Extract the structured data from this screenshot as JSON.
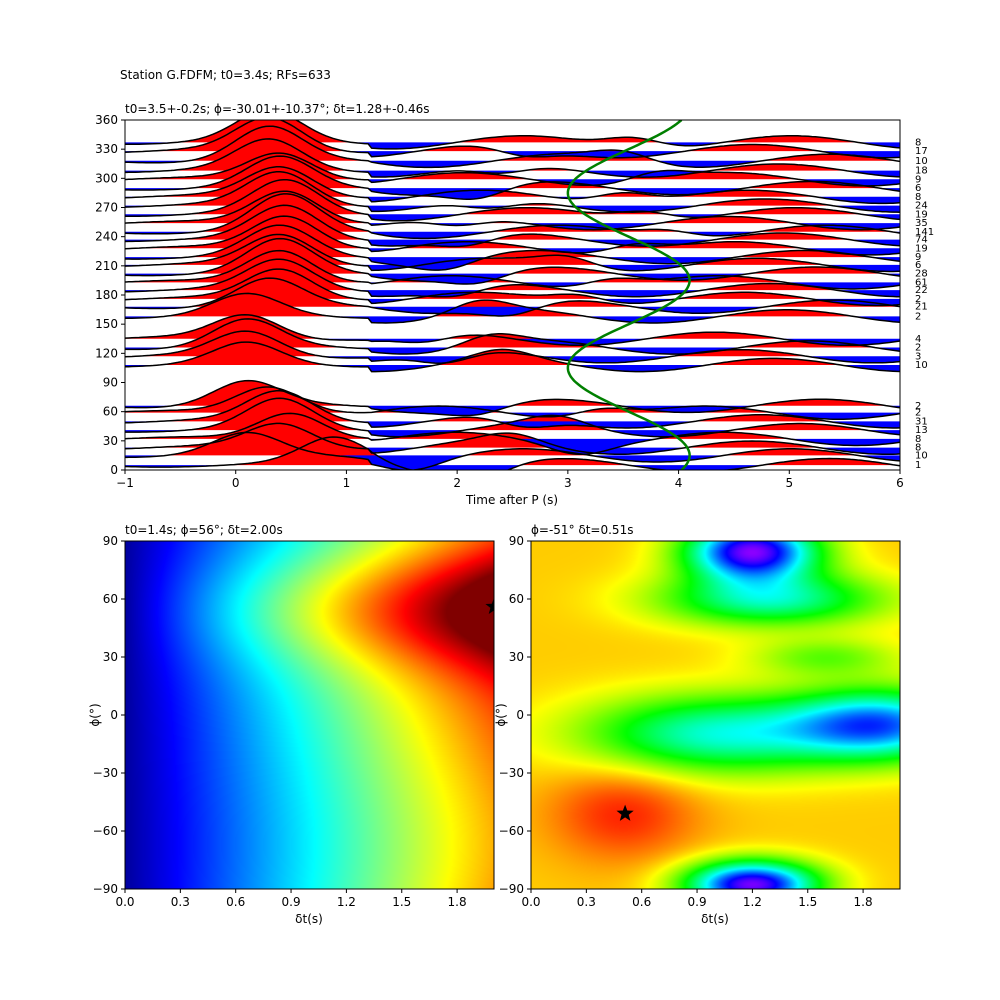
{
  "figure": {
    "suptitle": "Station G.FDFM; t0=3.4s; RFs=633"
  },
  "chart_data": [
    {
      "type": "line",
      "panel": "waveform-stack",
      "title": "t0=3.5+-0.2s; ϕ=-30.01+-10.37°; δt=1.28+-0.46s",
      "xlabel": "Time after P (s)",
      "ylabel": "",
      "xlim": [
        -1,
        6
      ],
      "ylim": [
        0,
        360
      ],
      "xticks": [
        -1,
        0,
        1,
        2,
        3,
        4,
        5,
        6
      ],
      "yticks": [
        0,
        30,
        60,
        90,
        120,
        150,
        180,
        210,
        240,
        270,
        300,
        330,
        360
      ],
      "positive_fill_color": "#ff0000",
      "negative_fill_color": "#0000ff",
      "trace_color": "#000000",
      "fit_curve_color": "#008000",
      "fit_curve": {
        "name": "",
        "center": 3.55,
        "amplitude": 0.55,
        "period_deg": 180,
        "phase_deg": 60
      },
      "traces": [
        {
          "baz": 5,
          "count": "1",
          "peak": 0.9,
          "peak_t": 0.9,
          "secondary": -0.4,
          "secondary_t": 2.2,
          "phase": 0.2
        },
        {
          "baz": 15,
          "count": "10",
          "peak": 0.7,
          "peak_t": 0.1,
          "secondary": -0.3,
          "secondary_t": 1.6,
          "phase": 1.1
        },
        {
          "baz": 23,
          "count": "8",
          "peak": 0.8,
          "peak_t": 0.4,
          "secondary": 0.3,
          "secondary_t": 2.5,
          "phase": 2.0
        },
        {
          "baz": 32,
          "count": "8",
          "peak": 0.9,
          "peak_t": 0.5,
          "secondary": -0.3,
          "secondary_t": 3.1,
          "phase": 2.7
        },
        {
          "baz": 41,
          "count": "13",
          "peak": 1.0,
          "peak_t": 0.4,
          "secondary": 0.3,
          "secondary_t": 2.9,
          "phase": 0.9
        },
        {
          "baz": 50,
          "count": "31",
          "peak": 1.0,
          "peak_t": 0.4,
          "secondary": -0.35,
          "secondary_t": 2.6,
          "phase": 1.8
        },
        {
          "baz": 59,
          "count": "2",
          "peak": 0.9,
          "peak_t": 0.3,
          "secondary": 0.3,
          "secondary_t": 3.3,
          "phase": 3.1
        },
        {
          "baz": 66,
          "count": "2",
          "peak": 0.8,
          "peak_t": 0.1,
          "secondary": -0.25,
          "secondary_t": 2.2,
          "phase": 0.4
        },
        {
          "baz": 108,
          "count": "10",
          "peak": 0.7,
          "peak_t": 0.1,
          "secondary": 0.3,
          "secondary_t": 2.4,
          "phase": 1.5
        },
        {
          "baz": 117,
          "count": "3",
          "peak": 0.8,
          "peak_t": 0.1,
          "secondary": -0.4,
          "secondary_t": 1.9,
          "phase": 2.3
        },
        {
          "baz": 126,
          "count": "2",
          "peak": 0.9,
          "peak_t": 0.1,
          "secondary": 0.35,
          "secondary_t": 2.3,
          "phase": 0.7
        },
        {
          "baz": 135,
          "count": "4",
          "peak": 0.8,
          "peak_t": 0.1,
          "secondary": -0.3,
          "secondary_t": 1.7,
          "phase": 2.9
        },
        {
          "baz": 158,
          "count": "2",
          "peak": 0.7,
          "peak_t": 0.1,
          "secondary": 0.4,
          "secondary_t": 2.2,
          "phase": 1.2
        },
        {
          "baz": 168,
          "count": "21",
          "peak": 0.9,
          "peak_t": 0.3,
          "secondary": -0.35,
          "secondary_t": 2.5,
          "phase": 0.1
        },
        {
          "baz": 176,
          "count": "2",
          "peak": 1.0,
          "peak_t": 0.4,
          "secondary": 0.3,
          "secondary_t": 3.1,
          "phase": 2.2
        },
        {
          "baz": 185,
          "count": "22",
          "peak": 1.0,
          "peak_t": 0.4,
          "secondary": -0.3,
          "secondary_t": 2.0,
          "phase": 1.6
        },
        {
          "baz": 193,
          "count": "61",
          "peak": 1.1,
          "peak_t": 0.4,
          "secondary": 0.3,
          "secondary_t": 3.4,
          "phase": 2.8
        },
        {
          "baz": 202,
          "count": "28",
          "peak": 1.1,
          "peak_t": 0.4,
          "secondary": -0.3,
          "secondary_t": 2.2,
          "phase": 0.5
        },
        {
          "baz": 211,
          "count": "6",
          "peak": 1.0,
          "peak_t": 0.4,
          "secondary": 0.35,
          "secondary_t": 3.0,
          "phase": 1.9
        },
        {
          "baz": 219,
          "count": "9",
          "peak": 1.0,
          "peak_t": 0.4,
          "secondary": -0.3,
          "secondary_t": 1.9,
          "phase": 0.8
        },
        {
          "baz": 228,
          "count": "19",
          "peak": 1.1,
          "peak_t": 0.45,
          "secondary": 0.3,
          "secondary_t": 3.6,
          "phase": 2.4
        },
        {
          "baz": 237,
          "count": "74",
          "peak": 1.1,
          "peak_t": 0.45,
          "secondary": -0.3,
          "secondary_t": 2.1,
          "phase": 1.3
        },
        {
          "baz": 245,
          "count": "141",
          "peak": 1.2,
          "peak_t": 0.45,
          "secondary": 0.25,
          "secondary_t": 3.9,
          "phase": 0.3
        },
        {
          "baz": 254,
          "count": "35",
          "peak": 1.1,
          "peak_t": 0.45,
          "secondary": -0.3,
          "secondary_t": 2.0,
          "phase": 2.6
        },
        {
          "baz": 263,
          "count": "19",
          "peak": 1.1,
          "peak_t": 0.45,
          "secondary": 0.3,
          "secondary_t": 3.7,
          "phase": 1.0
        },
        {
          "baz": 272,
          "count": "24",
          "peak": 1.1,
          "peak_t": 0.4,
          "secondary": -0.3,
          "secondary_t": 2.3,
          "phase": 1.7
        },
        {
          "baz": 281,
          "count": "8",
          "peak": 1.0,
          "peak_t": 0.4,
          "secondary": 0.35,
          "secondary_t": 3.5,
          "phase": 2.1
        },
        {
          "baz": 290,
          "count": "6",
          "peak": 1.0,
          "peak_t": 0.4,
          "secondary": -0.35,
          "secondary_t": 2.2,
          "phase": 0.6
        },
        {
          "baz": 299,
          "count": "9",
          "peak": 0.9,
          "peak_t": 0.4,
          "secondary": 0.3,
          "secondary_t": 3.8,
          "phase": 2.5
        },
        {
          "baz": 308,
          "count": "18",
          "peak": 1.0,
          "peak_t": 0.3,
          "secondary": -0.3,
          "secondary_t": 2.4,
          "phase": 1.4
        },
        {
          "baz": 318,
          "count": "10",
          "peak": 1.1,
          "peak_t": 0.3,
          "secondary": 0.3,
          "secondary_t": 3.5,
          "phase": 0.2
        },
        {
          "baz": 328,
          "count": "17",
          "peak": 1.1,
          "peak_t": 0.3,
          "secondary": -0.3,
          "secondary_t": 2.6,
          "phase": 2.0
        },
        {
          "baz": 337,
          "count": "8",
          "peak": 1.0,
          "peak_t": 0.3,
          "secondary": 0.35,
          "secondary_t": 3.6,
          "phase": 1.1
        }
      ]
    },
    {
      "type": "heatmap",
      "panel": "energy-grid-left",
      "title": "t0=1.4s; ϕ=56°; δt=2.00s",
      "xlabel": "δt(s)",
      "ylabel": "ϕ(°)",
      "xlim": [
        0,
        2
      ],
      "ylim": [
        -90,
        90
      ],
      "xticks": [
        "0.0",
        "0.3",
        "0.6",
        "0.9",
        "1.2",
        "1.5",
        "1.8"
      ],
      "yticks": [
        90,
        60,
        30,
        0,
        -30,
        -60,
        -90
      ],
      "colormap": "jet",
      "marker": {
        "x": 2.0,
        "y": 56,
        "symbol": "star",
        "color": "#000000"
      }
    },
    {
      "type": "heatmap",
      "panel": "energy-grid-right",
      "title": "ϕ=-51° δt=0.51s",
      "xlabel": "δt(s)",
      "ylabel": "ϕ(°)",
      "xlim": [
        0,
        2
      ],
      "ylim": [
        -90,
        90
      ],
      "xticks": [
        "0.0",
        "0.3",
        "0.6",
        "0.9",
        "1.2",
        "1.5",
        "1.8"
      ],
      "yticks": [
        90,
        60,
        30,
        0,
        -30,
        -60,
        -90
      ],
      "colormap": "gist_rainbow",
      "marker": {
        "x": 0.51,
        "y": -51,
        "symbol": "star",
        "color": "#000000"
      }
    }
  ]
}
